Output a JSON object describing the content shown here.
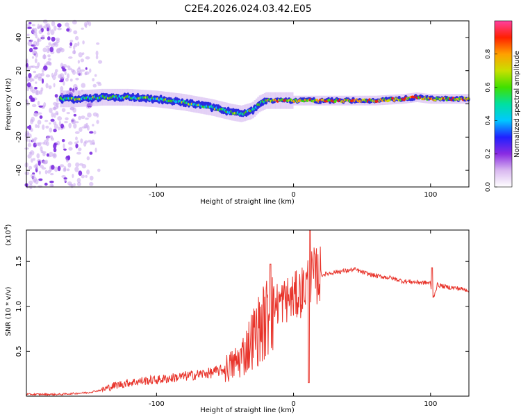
{
  "title": "C2E4.2026.024.03.42.E05",
  "colors": {
    "snr_line": "#e8332a",
    "axis": "#000000",
    "background": "#ffffff"
  },
  "chart_data": [
    {
      "type": "heatmap",
      "xlabel": "Height of straight line (km)",
      "ylabel": "Frequency (Hz)",
      "xlim": [
        -195,
        128
      ],
      "ylim": [
        -50,
        50
      ],
      "x_ticks": [
        -100,
        0,
        100
      ],
      "x_tick_labels": [
        "-100",
        "0",
        "100"
      ],
      "y_ticks": [
        -40,
        -20,
        0,
        20,
        40
      ],
      "y_tick_labels": [
        "-40",
        "-20",
        "0",
        "20",
        "40"
      ],
      "colorbar": {
        "label": "Normalized spectral amplitude",
        "range": [
          0,
          1
        ],
        "ticks": [
          0.0,
          0.2,
          0.4,
          0.6,
          0.8
        ],
        "tick_labels": [
          "0.0",
          "0.2",
          "0.4",
          "0.6",
          "0.8"
        ],
        "stops": [
          "#ffffff",
          "#d9b8f0",
          "#8a2be2",
          "#2020ff",
          "#00c8ff",
          "#00e0a0",
          "#40e000",
          "#c8e000",
          "#ffa000",
          "#ff2000",
          "#ff40a0"
        ]
      },
      "ridge": {
        "x": [
          -160,
          -140,
          -120,
          -100,
          -80,
          -60,
          -45,
          -38,
          -30,
          -25,
          -20,
          -10,
          0,
          20,
          40,
          60,
          80,
          90,
          100,
          110,
          128
        ],
        "frequency": [
          3,
          4,
          4,
          3,
          1,
          -2,
          -5,
          -6,
          -4,
          0,
          2,
          2,
          2,
          2,
          2,
          2,
          3,
          4,
          3,
          3,
          3
        ]
      },
      "noise_region_x": [
        -195,
        -140
      ]
    },
    {
      "type": "line",
      "xlabel": "Height of straight line (km)",
      "ylabel": "SNR (10 * v/v)",
      "scale_label": "(x10^4)",
      "xlim": [
        -195,
        128
      ],
      "ylim": [
        0,
        1.85
      ],
      "x_ticks": [
        -100,
        0,
        100
      ],
      "x_tick_labels": [
        "-100",
        "0",
        "100"
      ],
      "y_ticks": [
        0.5,
        1.0,
        1.5
      ],
      "y_tick_labels": [
        "0.5",
        "1.0",
        "1.5"
      ],
      "series": [
        {
          "name": "SNR",
          "x": [
            -195,
            -170,
            -150,
            -140,
            -130,
            -120,
            -110,
            -100,
            -90,
            -80,
            -70,
            -60,
            -50,
            -45,
            -40,
            -35,
            -30,
            -25,
            -20,
            -18,
            -15,
            -10,
            -5,
            0,
            5,
            10,
            12,
            15,
            20,
            30,
            40,
            45,
            50,
            60,
            70,
            80,
            90,
            100,
            101,
            105,
            110,
            120,
            128
          ],
          "y": [
            0.02,
            0.02,
            0.04,
            0.07,
            0.12,
            0.15,
            0.17,
            0.18,
            0.2,
            0.22,
            0.24,
            0.26,
            0.3,
            0.34,
            0.4,
            0.5,
            0.65,
            0.75,
            0.85,
            0.95,
            1.0,
            1.05,
            1.08,
            1.1,
            1.15,
            1.25,
            1.3,
            1.33,
            1.35,
            1.38,
            1.4,
            1.41,
            1.38,
            1.34,
            1.32,
            1.28,
            1.27,
            1.26,
            1.05,
            1.24,
            1.22,
            1.2,
            1.18
          ]
        }
      ],
      "spikes": [
        {
          "x": -17,
          "y": 1.47
        },
        {
          "x": 12,
          "y": 1.85
        },
        {
          "x": 11,
          "y": 0.15
        },
        {
          "x": 101,
          "y": 1.43
        }
      ]
    }
  ]
}
